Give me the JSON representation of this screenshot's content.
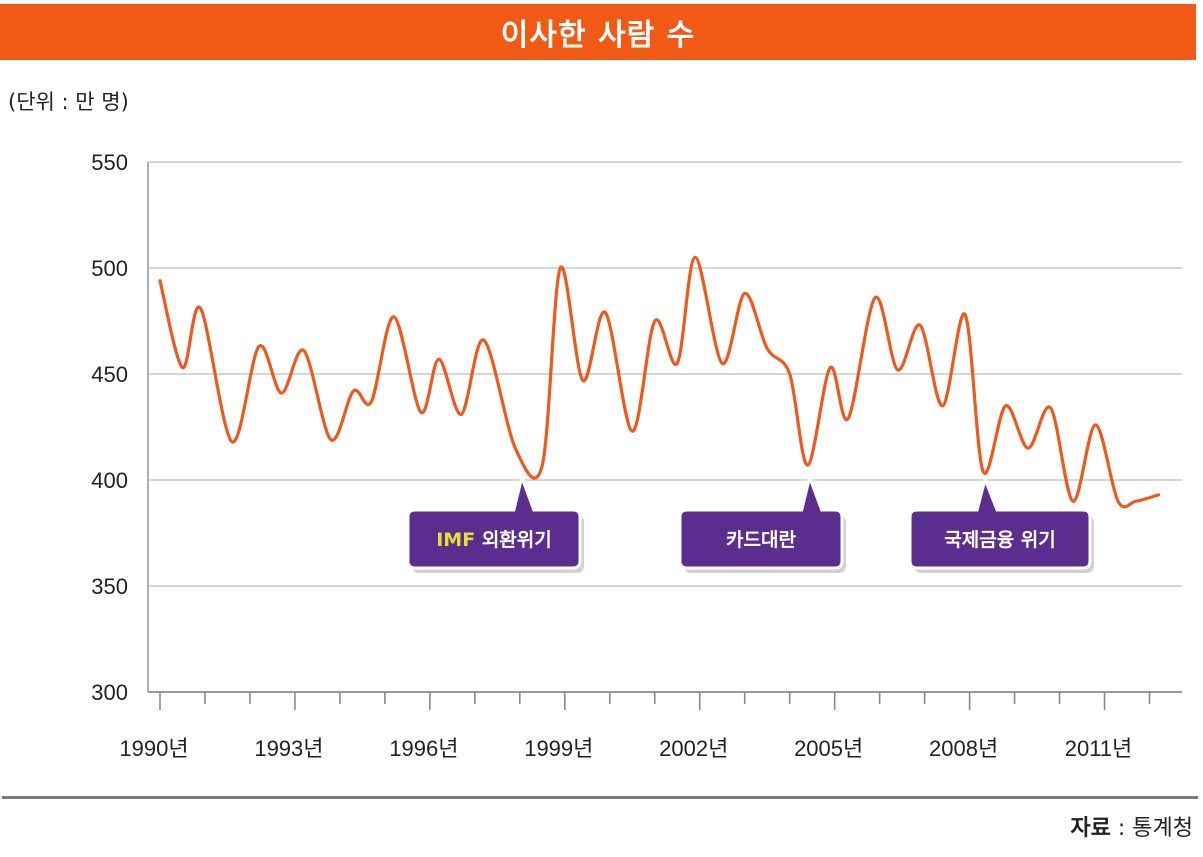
{
  "title": "이사한 사람 수",
  "unit_label": "(단위 : 만 명)",
  "source": {
    "label": "자료",
    "separator": " : ",
    "value": "통계청"
  },
  "colors": {
    "title_bg": "#f05a14",
    "line": "#ec5a1e",
    "callout_bg": "#5b2d8e",
    "callout_highlight": "#e5e034",
    "grid": "#c8c8c8"
  },
  "chart_data": {
    "type": "line",
    "title": "이사한 사람 수",
    "ylabel": "(단위 : 만 명)",
    "xlabel": "",
    "ylim": [
      300,
      550
    ],
    "yticks": [
      300,
      350,
      400,
      450,
      500,
      550
    ],
    "xlim": [
      1990,
      2012.3
    ],
    "xticks": [
      {
        "year": 1990,
        "label": "1990년"
      },
      {
        "year": 1993,
        "label": "1993년"
      },
      {
        "year": 1996,
        "label": "1996년"
      },
      {
        "year": 1999,
        "label": "1999년"
      },
      {
        "year": 2002,
        "label": "2002년"
      },
      {
        "year": 2005,
        "label": "2005년"
      },
      {
        "year": 2008,
        "label": "2008년"
      },
      {
        "year": 2011,
        "label": "2011년"
      }
    ],
    "grid": true,
    "series": [
      {
        "name": "이사한 사람 수",
        "x": [
          1990.0,
          1990.5,
          1990.9,
          1991.6,
          1992.2,
          1992.7,
          1993.2,
          1993.8,
          1994.3,
          1994.7,
          1995.2,
          1995.8,
          1996.2,
          1996.7,
          1997.2,
          1997.9,
          1998.5,
          1998.9,
          1999.4,
          1999.9,
          2000.5,
          2001.0,
          2001.5,
          2001.9,
          2002.5,
          2003.0,
          2003.5,
          2004.0,
          2004.4,
          2004.9,
          2005.3,
          2005.9,
          2006.4,
          2006.9,
          2007.4,
          2007.9,
          2008.3,
          2008.8,
          2009.3,
          2009.8,
          2010.3,
          2010.8,
          2011.3,
          2011.7,
          2012.2
        ],
        "values": [
          494,
          453,
          481,
          418,
          463,
          441,
          461,
          419,
          442,
          437,
          477,
          432,
          457,
          431,
          466,
          415,
          407,
          500,
          447,
          479,
          423,
          475,
          455,
          505,
          455,
          488,
          462,
          450,
          407,
          453,
          429,
          486,
          452,
          473,
          435,
          478,
          404,
          435,
          415,
          434,
          390,
          426,
          390,
          390,
          393
        ]
      }
    ],
    "annotations": [
      {
        "label_highlight": "IMF",
        "label": " 외환위기",
        "year": 1998.0,
        "value": 405
      },
      {
        "label_highlight": "",
        "label": "카드대란",
        "year": 2004.4,
        "value": 405
      },
      {
        "label_highlight": "",
        "label": "국제금융 위기",
        "year": 2008.3,
        "value": 404
      }
    ]
  }
}
